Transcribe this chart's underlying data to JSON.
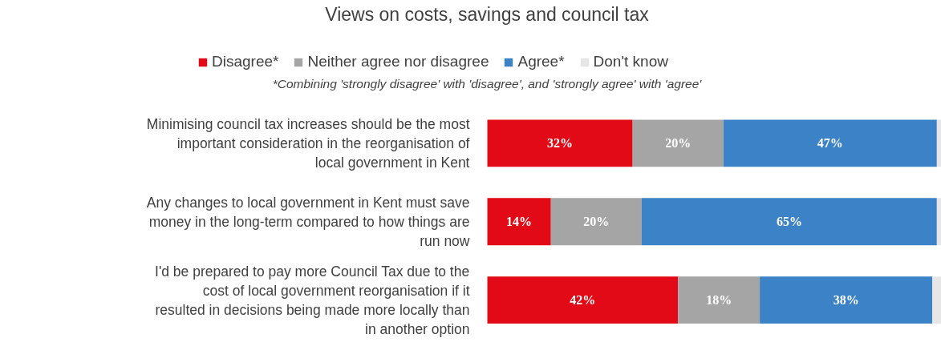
{
  "chart_data": {
    "type": "bar",
    "orientation": "horizontal",
    "stacked": true,
    "title": "Views on costs, savings and council tax",
    "subtitle": "*Combining 'strongly disagree' with 'disagree', and 'strongly agree' with 'agree'",
    "categories": [
      "Minimising council tax increases should be the most important consideration in the reorganisation of local government in Kent",
      "Any changes to local government in Kent must save money in the long-term compared to how things are run now",
      "I'd be prepared to pay more Council Tax due to the cost of local government reorganisation if it resulted in decisions being made more locally than in another option"
    ],
    "series": [
      {
        "name": "Disagree*",
        "color": "#e20a16",
        "values": [
          32,
          14,
          42
        ],
        "value_labels": [
          "32%",
          "14%",
          "42%"
        ]
      },
      {
        "name": "Neither agree nor disagree",
        "color": "#a5a5a5",
        "values": [
          20,
          20,
          18
        ],
        "value_labels": [
          "20%",
          "20%",
          "18%"
        ]
      },
      {
        "name": "Agree*",
        "color": "#3c82c6",
        "values": [
          47,
          65,
          38
        ],
        "value_labels": [
          "47%",
          "65%",
          "38%"
        ]
      },
      {
        "name": "Don't know",
        "color": "#e6e6e6",
        "values": [
          1,
          1,
          2
        ],
        "value_labels": [
          null,
          null,
          null
        ]
      }
    ],
    "xlim": [
      0,
      100
    ],
    "legend": "top",
    "grid": false,
    "tick_labels": "y"
  }
}
